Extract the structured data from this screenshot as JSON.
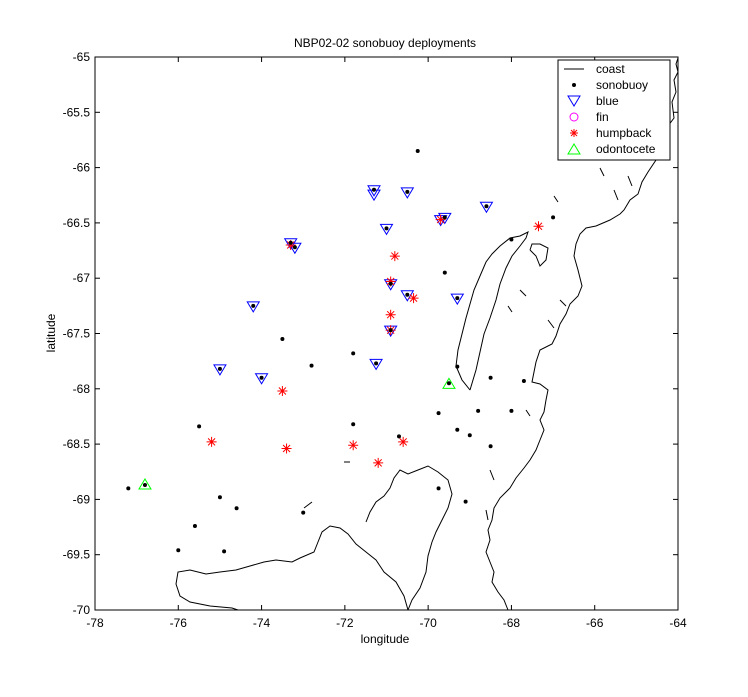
{
  "chart_data": {
    "type": "scatter",
    "title": "NBP02-02 sonobuoy deployments",
    "xlabel": "longitude",
    "ylabel": "latitude",
    "xlim": [
      -78,
      -64
    ],
    "ylim": [
      -70,
      -65
    ],
    "x_ticks": [
      -78,
      -76,
      -74,
      -72,
      -70,
      -68,
      -66,
      -64
    ],
    "y_ticks": [
      -65,
      -65.5,
      -66,
      -66.5,
      -67,
      -67.5,
      -68,
      -68.5,
      -69,
      -69.5,
      -70
    ],
    "x_tick_labels": [
      "-78",
      "-76",
      "-74",
      "-72",
      "-70",
      "-68",
      "-66",
      "-64"
    ],
    "y_tick_labels": [
      "-65",
      "-65.5",
      "-66",
      "-66.5",
      "-67",
      "-67.5",
      "-68",
      "-68.5",
      "-69",
      "-69.5",
      "-70"
    ],
    "grid": false,
    "legend_position": "top-right",
    "legend": [
      "coast",
      "sonobuoy",
      "blue",
      "fin",
      "humpback",
      "odontocete"
    ],
    "colors": {
      "coast": "#000000",
      "sonobuoy": "#000000",
      "blue": "#0000ff",
      "fin": "#ff00ff",
      "humpback": "#ff0000",
      "odontocete": "#00ff00"
    },
    "series": [
      {
        "name": "sonobuoy",
        "marker": "dot",
        "points": [
          [
            -70.25,
            -65.85
          ],
          [
            -71.3,
            -66.2
          ],
          [
            -70.5,
            -66.22
          ],
          [
            -71.0,
            -66.55
          ],
          [
            -69.6,
            -66.45
          ],
          [
            -68.6,
            -66.35
          ],
          [
            -67.0,
            -66.45
          ],
          [
            -68.0,
            -66.65
          ],
          [
            -73.3,
            -66.68
          ],
          [
            -73.2,
            -66.72
          ],
          [
            -70.9,
            -67.05
          ],
          [
            -70.5,
            -67.15
          ],
          [
            -69.3,
            -67.18
          ],
          [
            -69.6,
            -66.95
          ],
          [
            -74.2,
            -67.25
          ],
          [
            -73.5,
            -67.55
          ],
          [
            -70.9,
            -67.47
          ],
          [
            -71.8,
            -67.68
          ],
          [
            -71.25,
            -67.77
          ],
          [
            -75.0,
            -67.82
          ],
          [
            -74.0,
            -67.9
          ],
          [
            -72.8,
            -67.79
          ],
          [
            -69.3,
            -67.8
          ],
          [
            -69.5,
            -67.95
          ],
          [
            -68.5,
            -67.9
          ],
          [
            -67.7,
            -67.93
          ],
          [
            -69.75,
            -68.22
          ],
          [
            -68.8,
            -68.2
          ],
          [
            -68.0,
            -68.2
          ],
          [
            -69.3,
            -68.37
          ],
          [
            -69.0,
            -68.42
          ],
          [
            -68.5,
            -68.52
          ],
          [
            -71.8,
            -68.32
          ],
          [
            -70.7,
            -68.43
          ],
          [
            -75.5,
            -68.34
          ],
          [
            -77.2,
            -68.9
          ],
          [
            -76.8,
            -68.87
          ],
          [
            -69.75,
            -68.9
          ],
          [
            -69.1,
            -69.02
          ],
          [
            -75.0,
            -68.98
          ],
          [
            -74.6,
            -69.08
          ],
          [
            -73.0,
            -69.12
          ],
          [
            -75.6,
            -69.24
          ],
          [
            -76.0,
            -69.46
          ],
          [
            -74.9,
            -69.47
          ]
        ]
      },
      {
        "name": "blue",
        "marker": "triangle-down",
        "points": [
          [
            -71.3,
            -66.2
          ],
          [
            -71.3,
            -66.24
          ],
          [
            -70.5,
            -66.22
          ],
          [
            -71.0,
            -66.55
          ],
          [
            -69.6,
            -66.45
          ],
          [
            -69.7,
            -66.47
          ],
          [
            -68.6,
            -66.35
          ],
          [
            -73.3,
            -66.68
          ],
          [
            -73.2,
            -66.72
          ],
          [
            -70.9,
            -67.05
          ],
          [
            -70.5,
            -67.15
          ],
          [
            -69.3,
            -67.18
          ],
          [
            -74.2,
            -67.25
          ],
          [
            -70.9,
            -67.47
          ],
          [
            -71.25,
            -67.77
          ],
          [
            -75.0,
            -67.82
          ],
          [
            -74.0,
            -67.9
          ]
        ]
      },
      {
        "name": "fin",
        "marker": "circle",
        "points": []
      },
      {
        "name": "humpback",
        "marker": "asterisk",
        "points": [
          [
            -73.3,
            -66.7
          ],
          [
            -70.8,
            -66.8
          ],
          [
            -70.9,
            -67.03
          ],
          [
            -70.35,
            -67.18
          ],
          [
            -70.9,
            -67.33
          ],
          [
            -70.9,
            -67.47
          ],
          [
            -69.7,
            -66.47
          ],
          [
            -67.35,
            -66.53
          ],
          [
            -73.5,
            -68.02
          ],
          [
            -75.2,
            -68.48
          ],
          [
            -73.4,
            -68.54
          ],
          [
            -71.8,
            -68.51
          ],
          [
            -70.6,
            -68.48
          ],
          [
            -71.2,
            -68.67
          ]
        ]
      },
      {
        "name": "odontocete",
        "marker": "triangle-up",
        "points": [
          [
            -69.5,
            -67.96
          ],
          [
            -76.8,
            -68.87
          ]
        ]
      }
    ]
  }
}
